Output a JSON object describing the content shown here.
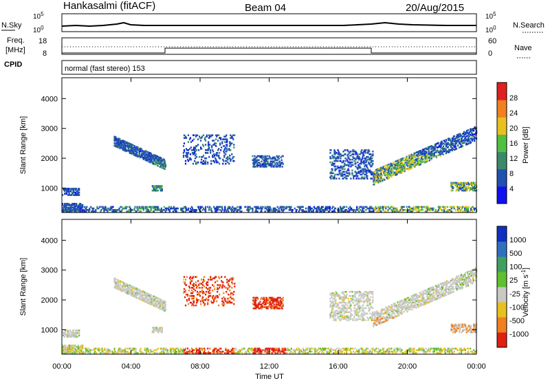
{
  "header": {
    "station": "Hankasalmi (fitACF)",
    "beam": "Beam 04",
    "date": "20/Aug/2015"
  },
  "panel_labels": {
    "nsky": "N.Sky",
    "nsky_top": "10^5",
    "nsky_bottom": "10^0",
    "nsearch": "N.Search",
    "nsearch_top": "10^5",
    "nsearch_bottom": "10^0",
    "freq_line1": "Freq.",
    "freq_line2": "[MHz]",
    "freq_top": "18",
    "freq_bottom": "8",
    "nave": "Nave",
    "nave_top": "60",
    "nave_bottom": "0",
    "cpid": "CPID",
    "cpid_text": "normal (fast stereo) 153"
  },
  "chart_data": [
    {
      "type": "heatmap",
      "name": "power",
      "ylabel": "Slant Range [km]",
      "ylim": [
        180,
        4700
      ],
      "yticks": [
        "1000",
        "2000",
        "3000",
        "4000"
      ],
      "colorbar_label": "Power [dB]",
      "colorbar_ticks": [
        "4",
        "8",
        "12",
        "16",
        "20",
        "24",
        "28"
      ],
      "colors": [
        "#1010f0",
        "#2050b0",
        "#3a8a6a",
        "#50c040",
        "#e8c020",
        "#f08020",
        "#e02020"
      ]
    },
    {
      "type": "heatmap",
      "name": "velocity",
      "ylabel": "Slant Range [km]",
      "ylim": [
        180,
        4700
      ],
      "yticks": [
        "1000",
        "2000",
        "3000",
        "4000"
      ],
      "colorbar_label": "Velocity [m s",
      "colorbar_label_sup": "-1",
      "colorbar_label_end": "]",
      "colorbar_ticks": [
        "1000",
        "500",
        "100",
        "25",
        "-25",
        "-100",
        "-500",
        "-1000"
      ],
      "colors": [
        "#1030c0",
        "#3070c0",
        "#40a060",
        "#60c030",
        "#c8c8c4",
        "#e8c020",
        "#f08020",
        "#e02010"
      ]
    },
    {
      "type": "line",
      "name": "time-axis",
      "xlabel": "Time UT",
      "xlim": [
        "00:00",
        "24:00"
      ],
      "xticks": [
        "00:00",
        "04:00",
        "08:00",
        "12:00",
        "16:00",
        "20:00",
        "00:00"
      ]
    }
  ]
}
